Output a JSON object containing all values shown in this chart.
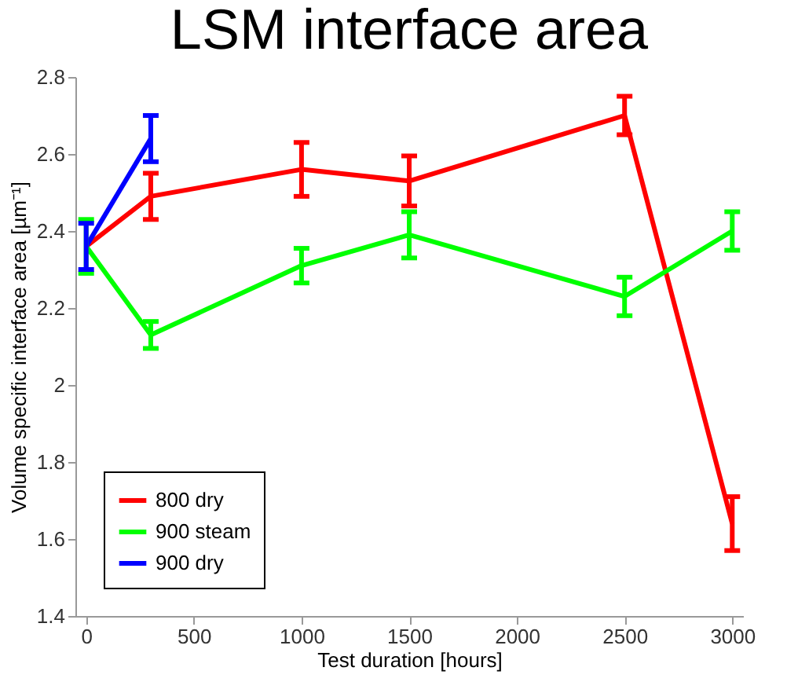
{
  "chart_data": {
    "type": "line",
    "title": "LSM interface area",
    "xlabel": "Test duration [hours]",
    "ylabel": "Volume specific interface area [µm⁻¹]",
    "x": [
      0,
      300,
      1000,
      1500,
      2500,
      3000
    ],
    "series": [
      {
        "name": "800 dry",
        "color": "#ff0000",
        "values": [
          2.36,
          2.49,
          2.56,
          2.53,
          2.7,
          1.64
        ],
        "errors": [
          null,
          0.06,
          0.07,
          0.065,
          0.05,
          0.07
        ]
      },
      {
        "name": "900 steam",
        "color": "#00ff00",
        "values": [
          2.36,
          2.13,
          2.31,
          2.39,
          2.23,
          2.4
        ],
        "errors": [
          0.07,
          0.035,
          0.045,
          0.06,
          0.05,
          0.05
        ]
      },
      {
        "name": "900 dry",
        "color": "#0000ff",
        "x": [
          0,
          300
        ],
        "values": [
          2.36,
          2.64
        ],
        "errors": [
          0.06,
          0.06
        ]
      }
    ],
    "xlim": [
      -50,
      3050
    ],
    "xticks": [
      0,
      500,
      1000,
      1500,
      2000,
      2500,
      3000
    ],
    "ylim": [
      1.4,
      2.8
    ],
    "yticks": [
      1.4,
      1.6,
      1.8,
      2,
      2.2,
      2.4,
      2.6,
      2.8
    ],
    "grid": false,
    "legend": "bottom left",
    "marker": "none",
    "line_style": "solid"
  }
}
